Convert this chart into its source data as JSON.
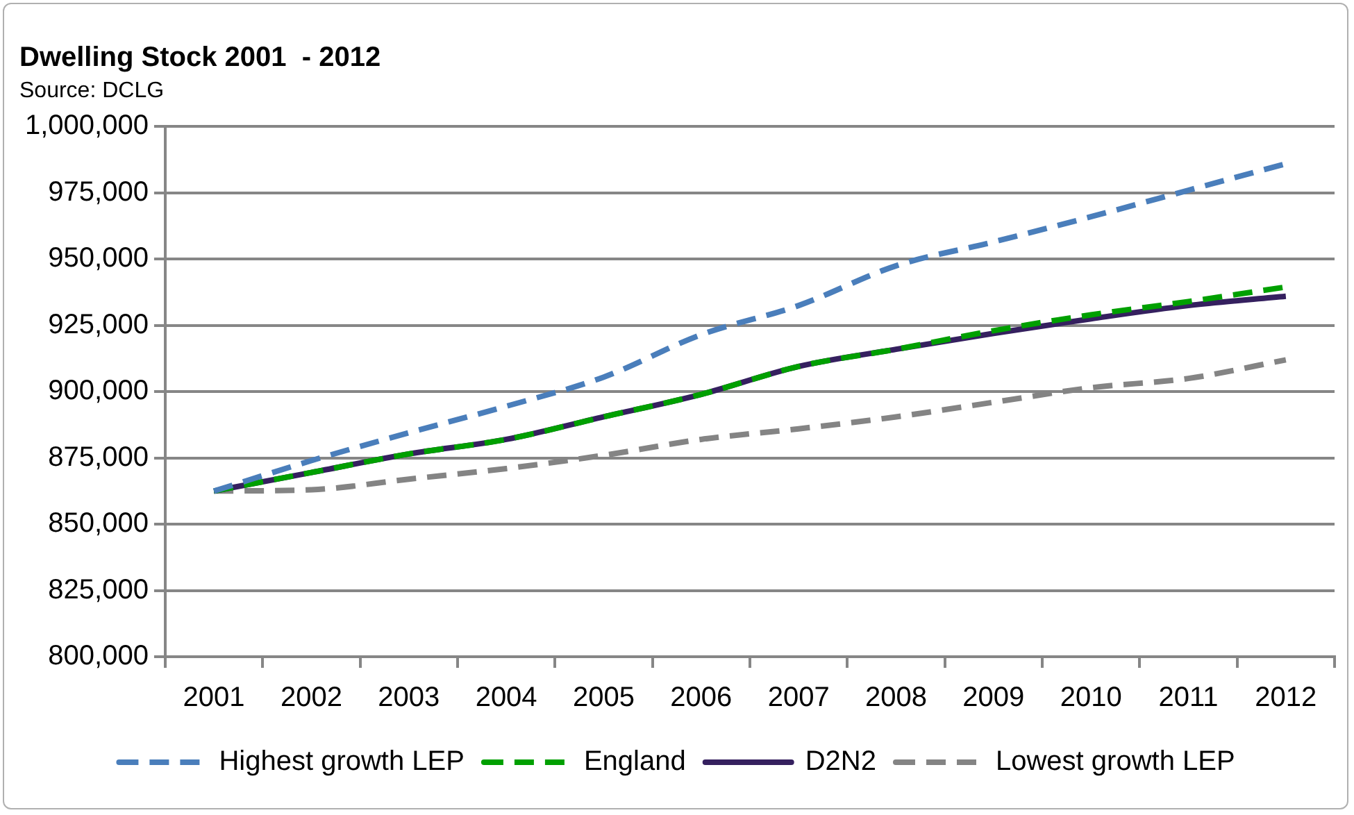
{
  "chart_data": {
    "type": "line",
    "title": "Dwelling Stock 2001  - 2012",
    "subtitle": "Source: DCLG",
    "categories": [
      "2001",
      "2002",
      "2003",
      "2004",
      "2005",
      "2006",
      "2007",
      "2008",
      "2009",
      "2010",
      "2011",
      "2012"
    ],
    "series": [
      {
        "name": "Highest growth LEP",
        "color": "#4a7ebb",
        "line_style": "dashed",
        "values": [
          862500,
          874000,
          884500,
          894500,
          905500,
          921500,
          932500,
          947500,
          956500,
          966000,
          976000,
          986000
        ]
      },
      {
        "name": "England",
        "color": "#00a000",
        "line_style": "dashed",
        "values": [
          862500,
          869500,
          876500,
          882000,
          890500,
          899000,
          909500,
          916000,
          923000,
          929000,
          934000,
          939500
        ]
      },
      {
        "name": "D2N2",
        "color": "#35205f",
        "line_style": "solid",
        "values": [
          862500,
          869500,
          876500,
          882000,
          890500,
          899000,
          909500,
          916000,
          922000,
          927500,
          932500,
          936000
        ]
      },
      {
        "name": "Lowest growth LEP",
        "color": "#848484",
        "line_style": "dashed",
        "values": [
          862500,
          863000,
          867000,
          871000,
          876000,
          882000,
          886000,
          890500,
          896000,
          901500,
          905000,
          912000
        ]
      }
    ],
    "ylim": [
      800000,
      1000000
    ],
    "yticks": [
      {
        "value": 800000,
        "label": "800,000"
      },
      {
        "value": 825000,
        "label": "825,000"
      },
      {
        "value": 850000,
        "label": "850,000"
      },
      {
        "value": 875000,
        "label": "875,000"
      },
      {
        "value": 900000,
        "label": "900,000"
      },
      {
        "value": 925000,
        "label": "925,000"
      },
      {
        "value": 950000,
        "label": "950,000"
      },
      {
        "value": 975000,
        "label": "975,000"
      },
      {
        "value": 1000000,
        "label": "1,000,000"
      }
    ],
    "grid": "y",
    "legend": "bottom",
    "marker": "none"
  }
}
